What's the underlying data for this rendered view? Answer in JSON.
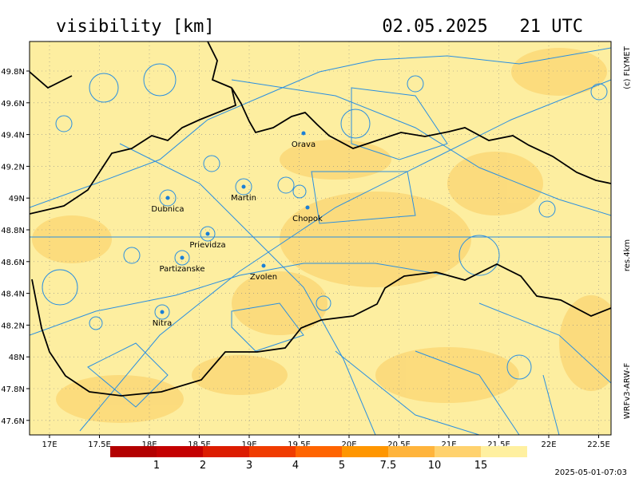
{
  "header": {
    "title": "visibility [km]",
    "timestamp": "02.05.2025   21 UTC"
  },
  "side_labels": {
    "copyright": "(c) FLYMET",
    "resolution": "res.4km",
    "model": "WRFv3-ARW-F"
  },
  "map": {
    "lat_ticks": [
      {
        "value": 49.8,
        "label": "49.8N"
      },
      {
        "value": 49.6,
        "label": "49.6N"
      },
      {
        "value": 49.4,
        "label": "49.4N"
      },
      {
        "value": 49.2,
        "label": "49.2N"
      },
      {
        "value": 49,
        "label": "49N"
      },
      {
        "value": 48.8,
        "label": "48.8N"
      },
      {
        "value": 48.6,
        "label": "48.6N"
      },
      {
        "value": 48.4,
        "label": "48.4N"
      },
      {
        "value": 48.2,
        "label": "48.2N"
      },
      {
        "value": 48,
        "label": "48N"
      },
      {
        "value": 47.8,
        "label": "47.8N"
      },
      {
        "value": 47.6,
        "label": "47.6N"
      }
    ],
    "lon_ticks": [
      {
        "value": 17,
        "label": "17E"
      },
      {
        "value": 17.5,
        "label": "17.5E"
      },
      {
        "value": 18,
        "label": "18E"
      },
      {
        "value": 18.5,
        "label": "18.5E"
      },
      {
        "value": 19,
        "label": "19E"
      },
      {
        "value": 19.5,
        "label": "19.5E"
      },
      {
        "value": 20,
        "label": "20E"
      },
      {
        "value": 20.5,
        "label": "20.5E"
      },
      {
        "value": 21,
        "label": "21E"
      },
      {
        "value": 21.5,
        "label": "21.5E"
      },
      {
        "value": 22,
        "label": "22E"
      },
      {
        "value": 22.5,
        "label": "22.5E"
      }
    ],
    "cities": [
      "Orava",
      "Martin",
      "Dubnica",
      "Chopok",
      "Prievidza",
      "Partizanske",
      "Zvolen",
      "Nitra"
    ]
  },
  "legend": {
    "colors": [
      "#b30000",
      "#c40000",
      "#dc1c00",
      "#f03c00",
      "#ff6400",
      "#ff9600",
      "#ffb43c",
      "#ffd26e",
      "#fff0a0"
    ],
    "labels": [
      "1",
      "2",
      "3",
      "4",
      "5",
      "7.5",
      "10",
      "15"
    ]
  },
  "footer": {
    "generated": "2025-05-01-07:03"
  }
}
